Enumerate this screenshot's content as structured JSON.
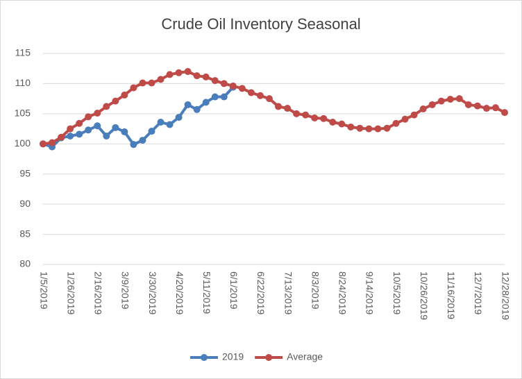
{
  "chart_data": {
    "type": "line",
    "title": "Crude Oil Inventory Seasonal",
    "categories": [
      "1/5/2019",
      null,
      null,
      "1/26/2019",
      null,
      null,
      "2/16/2019",
      null,
      null,
      "3/9/2019",
      null,
      null,
      "3/30/2019",
      null,
      null,
      "4/20/2019",
      null,
      null,
      "5/11/2019",
      null,
      null,
      "6/1/2019",
      null,
      null,
      "6/22/2019",
      null,
      null,
      "7/13/2019",
      null,
      null,
      "8/3/2019",
      null,
      null,
      "8/24/2019",
      null,
      null,
      "9/14/2019",
      null,
      null,
      "10/5/2019",
      null,
      null,
      "10/26/2019",
      null,
      null,
      "11/16/2019",
      null,
      null,
      "12/7/2019",
      null,
      null,
      "12/28/2019"
    ],
    "series": [
      {
        "name": "2019",
        "color": "#4a7ebb",
        "values": [
          100,
          99.5,
          101,
          101.3,
          101.6,
          102.3,
          103,
          101.3,
          102.7,
          102,
          99.9,
          100.6,
          102.1,
          103.6,
          103.2,
          104.4,
          106.5,
          105.7,
          106.9,
          107.8,
          107.8,
          109.4,
          null,
          null,
          null,
          null,
          null,
          null,
          null,
          null,
          null,
          null,
          null,
          null,
          null,
          null,
          null,
          null,
          null,
          null,
          null,
          null,
          null,
          null,
          null,
          null,
          null,
          null,
          null,
          null,
          null,
          null
        ]
      },
      {
        "name": "Average",
        "color": "#be4b48",
        "values": [
          100,
          100.2,
          101.1,
          102.5,
          103.4,
          104.5,
          105.1,
          106.2,
          107.1,
          108.1,
          109.3,
          110.1,
          110.1,
          110.7,
          111.5,
          111.8,
          112,
          111.3,
          111.1,
          110.5,
          110,
          109.6,
          109.2,
          108.5,
          108,
          107.5,
          106.2,
          105.9,
          105,
          104.8,
          104.3,
          104.2,
          103.6,
          103.3,
          102.8,
          102.6,
          102.5,
          102.5,
          102.6,
          103.4,
          104.1,
          104.8,
          105.8,
          106.5,
          107.1,
          107.4,
          107.5,
          106.5,
          106.3,
          105.9,
          106,
          105.2
        ]
      }
    ],
    "ylim": [
      80,
      115
    ],
    "yticks": [
      80,
      85,
      90,
      95,
      100,
      105,
      110,
      115
    ],
    "grid": true,
    "legend": "bottom"
  }
}
